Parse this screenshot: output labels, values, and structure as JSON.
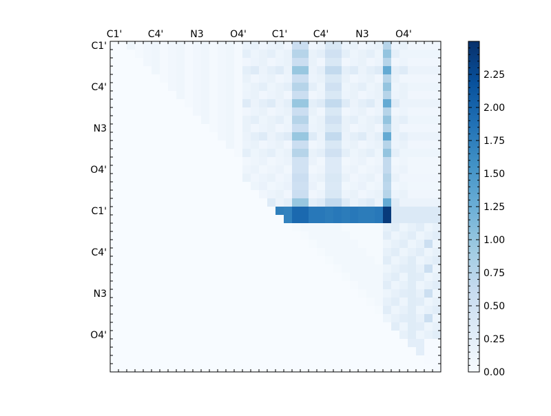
{
  "chart_data": {
    "type": "heatmap",
    "title": "",
    "xlabel": "",
    "ylabel": "",
    "rows": 40,
    "cols": 40,
    "tick_labels": [
      "C1'",
      "C4'",
      "N3",
      "O4'",
      "C1'",
      "C4'",
      "N3",
      "O4'"
    ],
    "row_tick_labels": [
      "C1'",
      "C4'",
      "N3",
      "O4'",
      "C1'",
      "C4'",
      "N3",
      "O4'"
    ],
    "colormap": "Blues",
    "colors": {
      "low": "#f7fbff",
      "mid": "#6baed6",
      "high": "#08306b"
    },
    "colorbar": {
      "min": 0.0,
      "max": 2.5,
      "ticks": [
        "0.00",
        "0.25",
        "0.50",
        "0.75",
        "1.00",
        "1.25",
        "1.50",
        "1.75",
        "2.00",
        "2.25"
      ]
    },
    "matrix_description": "Upper-triangular distance-difference map; values read from the color scale",
    "bands": {
      "row_20_21_max": 2.45,
      "row_20_21_typical": 1.9,
      "upper_right_block_typical": 0.4,
      "column_33_peak": 1.5
    }
  }
}
